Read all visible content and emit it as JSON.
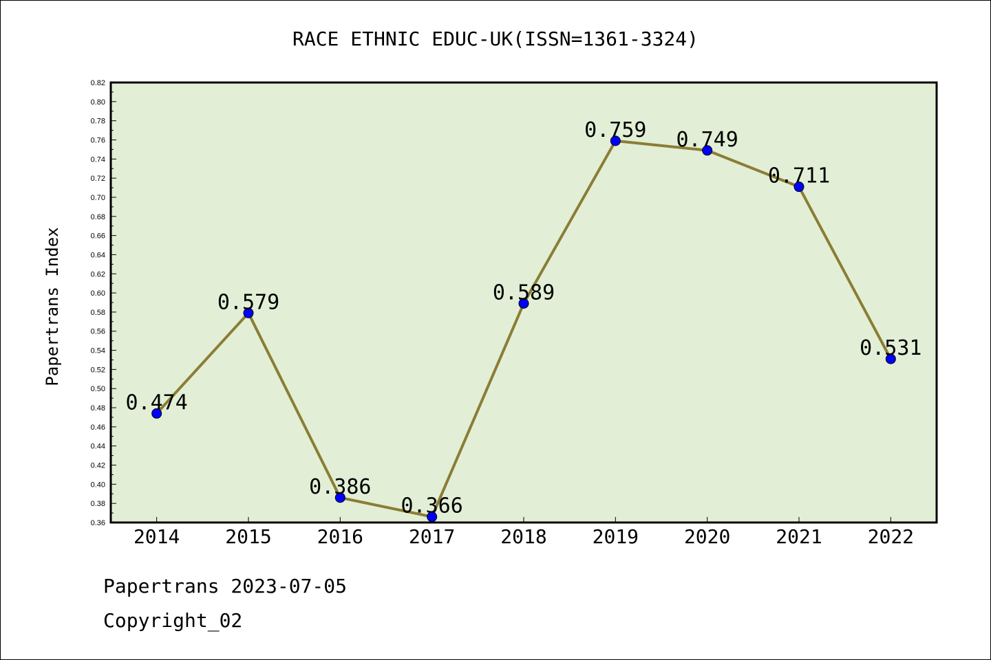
{
  "chart_data": {
    "type": "line",
    "title": "RACE ETHNIC EDUC-UK(ISSN=1361-3324)",
    "ylabel": "Papertrans Index",
    "xlabel": "",
    "categories": [
      "2014",
      "2015",
      "2016",
      "2017",
      "2018",
      "2019",
      "2020",
      "2021",
      "2022"
    ],
    "values": [
      0.474,
      0.579,
      0.386,
      0.366,
      0.589,
      0.759,
      0.749,
      0.711,
      0.531
    ],
    "data_labels": [
      "0.474",
      "0.579",
      "0.386",
      "0.366",
      "0.589",
      "0.759",
      "0.749",
      "0.711",
      "0.531"
    ],
    "ylim": [
      0.36,
      0.82
    ],
    "yticks": [
      "0.36",
      "0.38",
      "0.40",
      "0.42",
      "0.44",
      "0.46",
      "0.48",
      "0.50",
      "0.52",
      "0.54",
      "0.56",
      "0.58",
      "0.60",
      "0.62",
      "0.64",
      "0.66",
      "0.68",
      "0.70",
      "0.72",
      "0.74",
      "0.76",
      "0.78",
      "0.80",
      "0.82"
    ],
    "grid": false,
    "colors": {
      "plot_background": "#e2efd6",
      "line": "#8b7d35",
      "marker": "#0000ff"
    }
  },
  "footer": {
    "date_line": "Papertrans 2023-07-05",
    "copyright": "Copyright_02"
  }
}
